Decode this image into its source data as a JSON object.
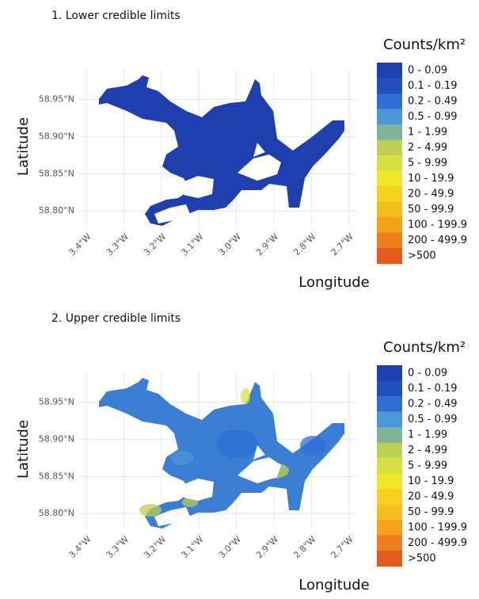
{
  "chart_data": [
    {
      "type": "map",
      "title": "1. Lower credible limits",
      "x_label": "Longitude",
      "y_label": "Latitude",
      "xlim": [
        -3.42,
        -2.68
      ],
      "ylim": [
        58.78,
        58.99
      ],
      "xticks": [
        {
          "value": -3.4,
          "label": "3.4°W"
        },
        {
          "value": -3.3,
          "label": "3.3°W"
        },
        {
          "value": -3.2,
          "label": "3.2°W"
        },
        {
          "value": -3.1,
          "label": "3.1°W"
        },
        {
          "value": -3.0,
          "label": "3.0°W"
        },
        {
          "value": -2.9,
          "label": "2.9°W"
        },
        {
          "value": -2.8,
          "label": "2.8°W"
        },
        {
          "value": -2.7,
          "label": "2.7°W"
        }
      ],
      "yticks": [
        {
          "value": 58.8,
          "label": "58.80°N"
        },
        {
          "value": 58.85,
          "label": "58.85°N"
        },
        {
          "value": 58.9,
          "label": "58.90°N"
        },
        {
          "value": 58.95,
          "label": "58.95°N"
        }
      ],
      "grid": true,
      "legend_title": "Counts/km²",
      "legend": {
        "categories": [
          "0 - 0.09",
          "0.1 - 0.19",
          "0.2 - 0.49",
          "0.5 - 0.99",
          "1 - 1.99",
          "2 - 4.99",
          "5 - 9.99",
          "10 - 19.9",
          "20 - 49.9",
          "50 - 99.9",
          "100 - 199.9",
          "200 - 499.9",
          ">500"
        ],
        "colors": [
          "#1f3fae",
          "#2250c0",
          "#2e6fd6",
          "#4a97d6",
          "#7fb49a",
          "#bcd055",
          "#d8e040",
          "#f0e62a",
          "#f5d21e",
          "#f6bd1e",
          "#f5a11e",
          "#ef7e1e",
          "#e25a1c"
        ]
      },
      "map_color": "#1f3fae"
    },
    {
      "type": "map",
      "title": "2. Upper credible limits",
      "x_label": "Longitude",
      "y_label": "Latitude",
      "xlim": [
        -3.42,
        -2.68
      ],
      "ylim": [
        58.78,
        58.99
      ],
      "xticks": [
        {
          "value": -3.4,
          "label": "3.4°W"
        },
        {
          "value": -3.3,
          "label": "3.3°W"
        },
        {
          "value": -3.2,
          "label": "3.2°W"
        },
        {
          "value": -3.1,
          "label": "3.1°W"
        },
        {
          "value": -3.0,
          "label": "3.0°W"
        },
        {
          "value": -2.9,
          "label": "2.9°W"
        },
        {
          "value": -2.8,
          "label": "2.8°W"
        },
        {
          "value": -2.7,
          "label": "2.7°W"
        }
      ],
      "yticks": [
        {
          "value": 58.8,
          "label": "58.80°N"
        },
        {
          "value": 58.85,
          "label": "58.85°N"
        },
        {
          "value": 58.9,
          "label": "58.90°N"
        },
        {
          "value": 58.95,
          "label": "58.95°N"
        }
      ],
      "grid": true,
      "legend_title": "Counts/km²",
      "legend": {
        "categories": [
          "0 - 0.09",
          "0.1 - 0.19",
          "0.2 - 0.49",
          "0.5 - 0.99",
          "1 - 1.99",
          "2 - 4.99",
          "5 - 9.99",
          "10 - 19.9",
          "20 - 49.9",
          "50 - 99.9",
          "100 - 199.9",
          "200 - 499.9",
          ">500"
        ],
        "colors": [
          "#1f3fae",
          "#2250c0",
          "#2e6fd6",
          "#4a97d6",
          "#7fb49a",
          "#bcd055",
          "#d8e040",
          "#f0e62a",
          "#f5d21e",
          "#f6bd1e",
          "#f5a11e",
          "#ef7e1e",
          "#e25a1c"
        ]
      },
      "map_color": "#3a7ed4"
    }
  ]
}
